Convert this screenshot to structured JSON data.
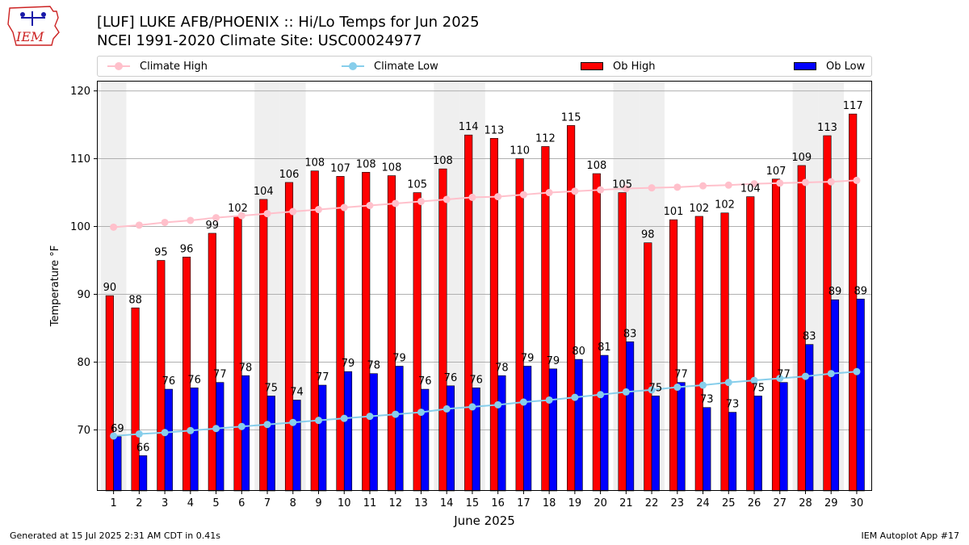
{
  "title": "[LUF] LUKE AFB/PHOENIX :: Hi/Lo Temps for Jun 2025",
  "subtitle": "NCEI 1991-2020 Climate Site: USC00024977",
  "footer_left": "Generated at 15 Jul 2025 2:31 AM CDT in 0.41s",
  "footer_right": "IEM Autoplot App #17",
  "logo_text": "IEM",
  "legend": [
    {
      "label": "Climate High",
      "color": "#ffc0cb",
      "kind": "line"
    },
    {
      "label": "Climate Low",
      "color": "#87ceeb",
      "kind": "line"
    },
    {
      "label": "Ob High",
      "color": "#ff0000",
      "kind": "bar"
    },
    {
      "label": "Ob Low",
      "color": "#0000ff",
      "kind": "bar"
    }
  ],
  "chart_data": {
    "type": "bar",
    "xlabel": "June 2025",
    "ylabel": "Temperature °F",
    "ylim": [
      61,
      121.5
    ],
    "yticks": [
      70,
      80,
      90,
      100,
      110,
      120
    ],
    "grid": true,
    "legend_position": "top",
    "weekend_shading_days": [
      1,
      7,
      8,
      14,
      15,
      21,
      22,
      28,
      29
    ],
    "categories": [
      "1",
      "2",
      "3",
      "4",
      "5",
      "6",
      "7",
      "8",
      "9",
      "10",
      "11",
      "12",
      "13",
      "14",
      "15",
      "16",
      "17",
      "18",
      "19",
      "20",
      "21",
      "22",
      "23",
      "24",
      "25",
      "26",
      "27",
      "28",
      "29",
      "30"
    ],
    "series": [
      {
        "name": "Ob High",
        "type": "bar",
        "color": "#ff0000",
        "values": [
          89.8,
          88.0,
          95.0,
          95.5,
          99.0,
          101.5,
          104.0,
          106.5,
          108.2,
          107.4,
          108.0,
          107.5,
          105.0,
          108.5,
          113.5,
          113.0,
          110.0,
          111.8,
          114.9,
          107.8,
          105.0,
          97.6,
          101.0,
          101.5,
          102.0,
          104.4,
          107.0,
          109.0,
          113.4,
          116.6
        ],
        "labels": [
          "90",
          "88",
          "95",
          "96",
          "99",
          "102",
          "104",
          "106",
          "108",
          "107",
          "108",
          "108",
          "105",
          "108",
          "114",
          "113",
          "110",
          "112",
          "115",
          "108",
          "105",
          "98",
          "101",
          "102",
          "102",
          "104",
          "107",
          "109",
          "113",
          "117"
        ]
      },
      {
        "name": "Ob Low",
        "type": "bar",
        "color": "#0000ff",
        "values": [
          69.0,
          66.2,
          76.0,
          76.2,
          77.0,
          78.0,
          75.0,
          74.4,
          76.6,
          78.6,
          78.3,
          79.4,
          76.0,
          76.5,
          76.2,
          78.0,
          79.4,
          79.0,
          80.4,
          81.0,
          83.0,
          75.0,
          77.0,
          73.3,
          72.6,
          75.0,
          77.0,
          82.6,
          89.2,
          89.3
        ],
        "labels": [
          "69",
          "66",
          "76",
          "76",
          "77",
          "78",
          "75",
          "74",
          "77",
          "79",
          "78",
          "79",
          "76",
          "76",
          "76",
          "78",
          "79",
          "79",
          "80",
          "81",
          "83",
          "75",
          "77",
          "73",
          "73",
          "75",
          "77",
          "83",
          "89",
          "89"
        ]
      },
      {
        "name": "Climate High",
        "type": "line",
        "color": "#ffc0cb",
        "values": [
          99.9,
          100.2,
          100.6,
          100.9,
          101.3,
          101.6,
          101.9,
          102.2,
          102.5,
          102.8,
          103.1,
          103.4,
          103.7,
          104.0,
          104.3,
          104.4,
          104.7,
          105.0,
          105.2,
          105.4,
          105.6,
          105.7,
          105.8,
          106.0,
          106.1,
          106.3,
          106.4,
          106.5,
          106.6,
          106.8
        ]
      },
      {
        "name": "Climate Low",
        "type": "line",
        "color": "#87ceeb",
        "values": [
          69.1,
          69.4,
          69.6,
          69.9,
          70.2,
          70.5,
          70.8,
          71.1,
          71.4,
          71.7,
          72.0,
          72.3,
          72.6,
          73.1,
          73.4,
          73.7,
          74.1,
          74.4,
          74.8,
          75.2,
          75.6,
          75.9,
          76.3,
          76.6,
          77.0,
          77.3,
          77.6,
          77.9,
          78.3,
          78.6
        ]
      }
    ]
  }
}
